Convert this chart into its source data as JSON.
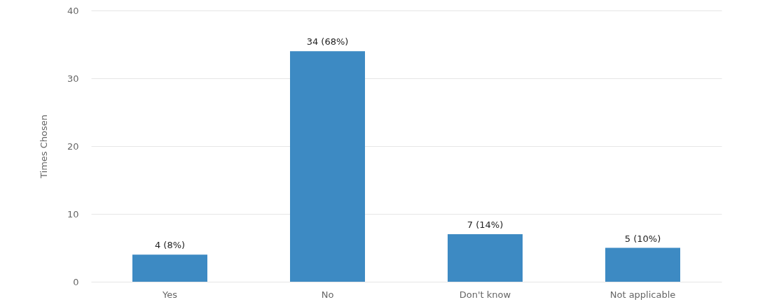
{
  "chart_data": {
    "type": "bar",
    "ylabel": "Times Chosen",
    "categories": [
      "Yes",
      "No",
      "Don't know",
      "Not applicable"
    ],
    "values": [
      4,
      34,
      7,
      5
    ],
    "color": "#3d8ac3",
    "value_labels": [
      "4 (8%)",
      "34 (68%)",
      "7 (14%)",
      "5 (10%)"
    ],
    "ylim": [
      0,
      40
    ],
    "yticks": [
      0,
      10,
      20,
      30,
      40
    ],
    "grid": "y"
  }
}
